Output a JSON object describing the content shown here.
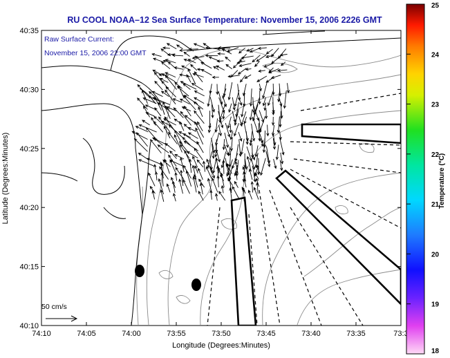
{
  "title": "RU COOL  NOAA–12  Sea Surface Temperature:  November 15, 2006 2226 GMT",
  "legend": {
    "line1": "Raw Surface Current:",
    "line2": "November 15, 2006 22:00 GMT"
  },
  "scale": {
    "label": "50 cm/s"
  },
  "x_axis": {
    "label": "Longitude (Degrees:Minutes)",
    "ticks": [
      "74:10",
      "74:05",
      "74:00",
      "73:55",
      "73:50",
      "73:45",
      "73:40",
      "73:35",
      "73:3"
    ]
  },
  "y_axis": {
    "label": "Latitude (Degrees:Minutes)",
    "ticks": [
      "40:35",
      "40:30",
      "40:25",
      "40:20",
      "40:15",
      "40:10"
    ]
  },
  "colorbar": {
    "label": "Temperature (°C)",
    "ticks": [
      "25",
      "24",
      "23",
      "22",
      "21",
      "20",
      "19",
      "18"
    ]
  },
  "colors": {
    "title": "#1a1aa6",
    "land_lines": "#000000",
    "bathymetry": "#8a8a8a",
    "vectors": "#000000"
  }
}
